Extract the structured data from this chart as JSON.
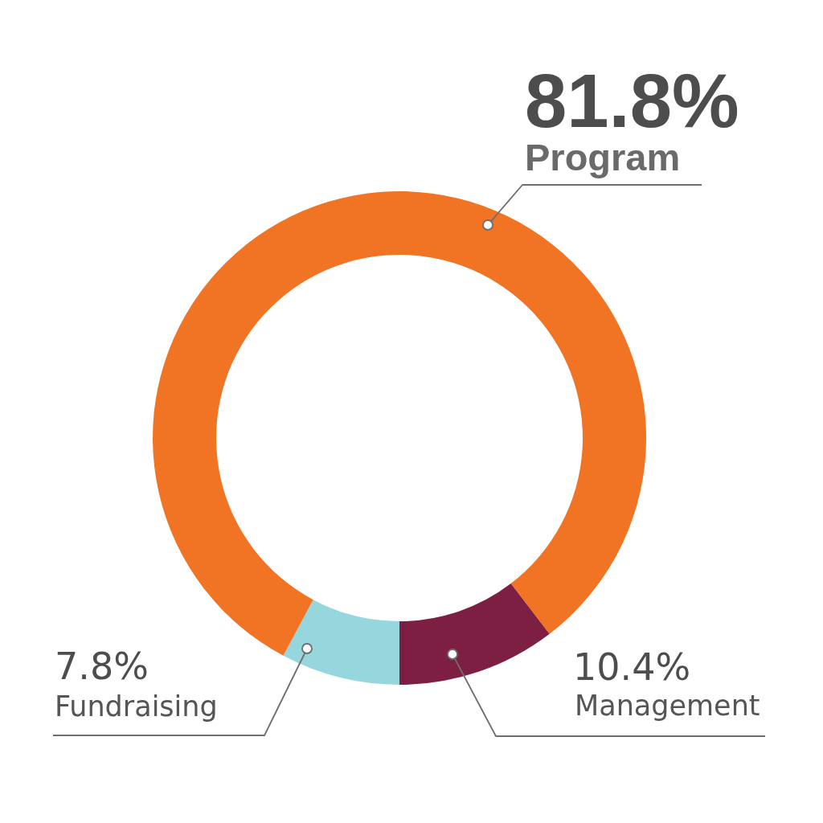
{
  "chart_data": {
    "type": "donut",
    "categories": [
      "Fundraising",
      "Program",
      "Management"
    ],
    "values": [
      7.8,
      81.8,
      10.4
    ],
    "colors": [
      "#95d7dd",
      "#f17324",
      "#7d1f42"
    ],
    "value_labels": [
      "7.8%",
      "81.8%",
      "10.4%"
    ]
  }
}
